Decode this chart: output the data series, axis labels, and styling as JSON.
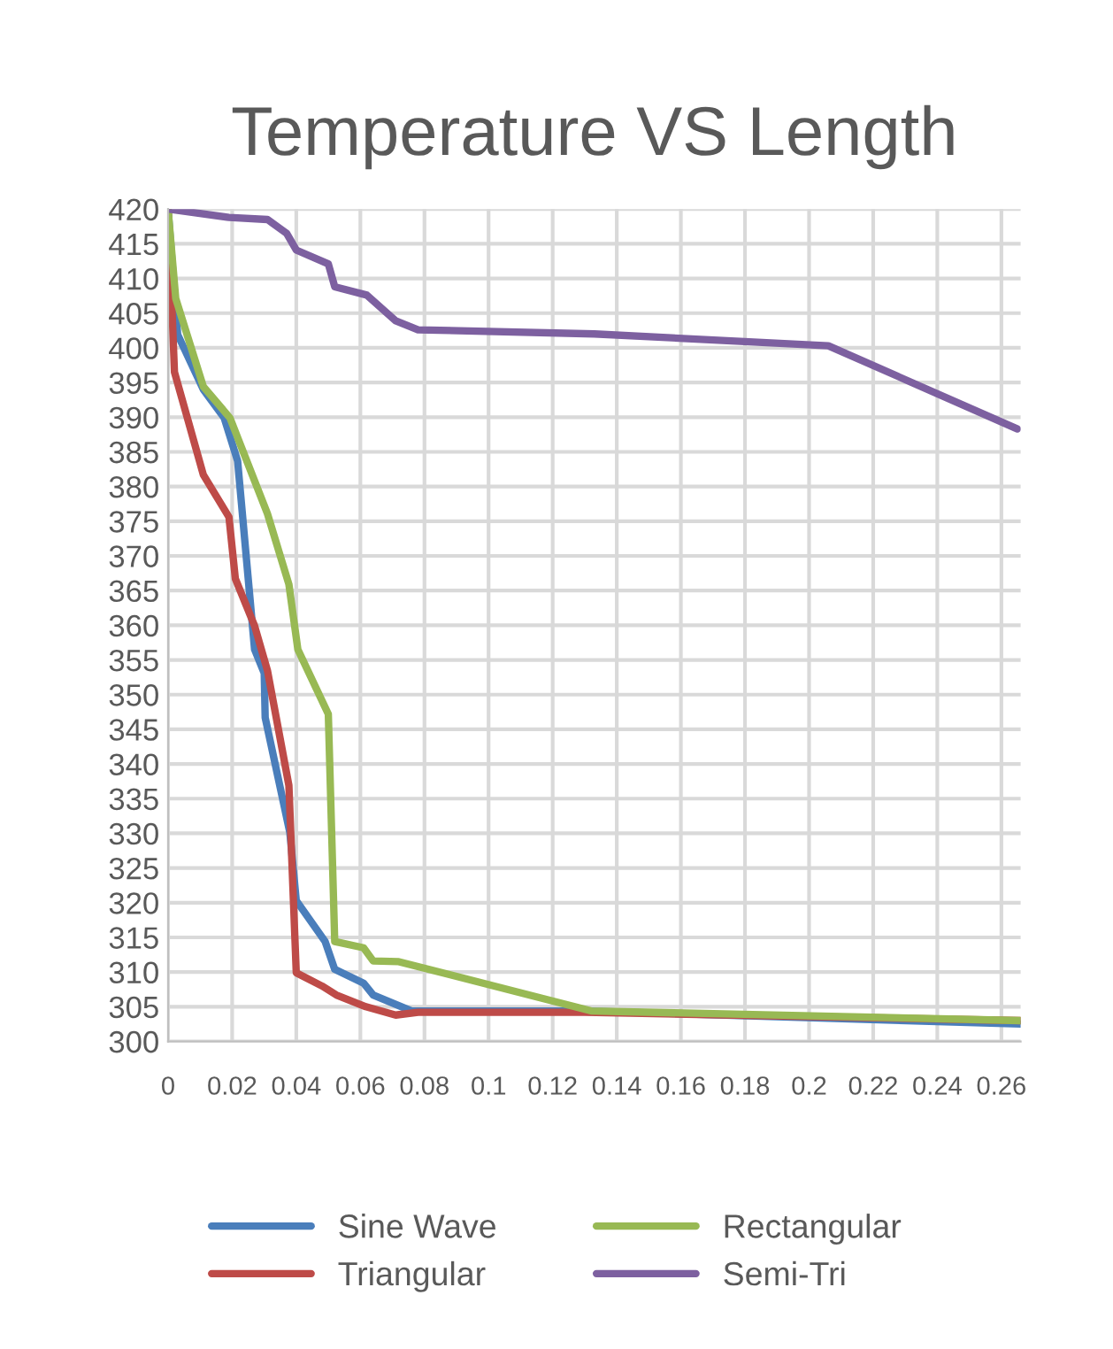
{
  "chart_data": {
    "type": "line",
    "title": "Temperature VS Length",
    "xlim": [
      0,
      0.266
    ],
    "ylim": [
      300,
      420
    ],
    "xticks": [
      0,
      0.02,
      0.04,
      0.06,
      0.08,
      {
        "value": 0.1,
        "label": "0.1"
      },
      0.12,
      0.14,
      0.16,
      0.18,
      {
        "value": 0.2,
        "label": "0.2"
      },
      0.22,
      0.24,
      0.26
    ],
    "yticks": [
      300,
      305,
      310,
      315,
      320,
      325,
      330,
      335,
      340,
      345,
      350,
      355,
      360,
      365,
      370,
      375,
      380,
      385,
      390,
      395,
      400,
      405,
      410,
      415,
      420
    ],
    "grid": true,
    "legend": "bottom",
    "marker": "none",
    "line_style": "solid",
    "series": [
      {
        "name": "Sine Wave",
        "color": "#4a7ebb",
        "x": [
          0,
          0.003,
          0.011,
          0.0175,
          0.0217,
          0.027,
          0.03,
          0.0303,
          0.038,
          0.04,
          0.049,
          0.052,
          0.061,
          0.064,
          0.076,
          0.13,
          0.266
        ],
        "values": [
          420,
          401.9,
          394,
          389.9,
          383.7,
          356.5,
          353.1,
          346.7,
          330.1,
          320.3,
          314.4,
          310.4,
          308.4,
          306.7,
          304.4,
          304.4,
          302.5
        ]
      },
      {
        "name": "Triangular",
        "color": "#be4b48",
        "x": [
          0,
          0.002,
          0.011,
          0.019,
          0.021,
          0.027,
          0.031,
          0.0377,
          0.04,
          0.048,
          0.0525,
          0.0617,
          0.071,
          0.078,
          0.13,
          0.266
        ],
        "values": [
          420,
          396.5,
          381.7,
          375.6,
          366.7,
          359.9,
          353.5,
          336.9,
          309.9,
          308,
          306.7,
          305,
          303.8,
          304.2,
          304.2,
          303
        ]
      },
      {
        "name": "Rectangular",
        "color": "#98b954",
        "x": [
          0,
          0.0024,
          0.011,
          0.0193,
          0.031,
          0.0377,
          0.0405,
          0.05,
          0.052,
          0.061,
          0.064,
          0.072,
          0.132,
          0.266
        ],
        "values": [
          420,
          407.1,
          394.4,
          389.9,
          376.1,
          365.9,
          356.5,
          347.2,
          314.4,
          313.5,
          311.6,
          311.5,
          304.4,
          303
        ]
      },
      {
        "name": "Semi-Tri",
        "color": "#7d60a0",
        "x": [
          0,
          0.019,
          0.031,
          0.037,
          0.04,
          0.05,
          0.052,
          0.062,
          0.071,
          0.078,
          0.133,
          0.206,
          0.265
        ],
        "values": [
          420,
          418.8,
          418.5,
          416.5,
          414.1,
          412.1,
          408.8,
          407.6,
          403.9,
          402.6,
          402.0,
          400.3,
          388.3
        ]
      }
    ]
  }
}
